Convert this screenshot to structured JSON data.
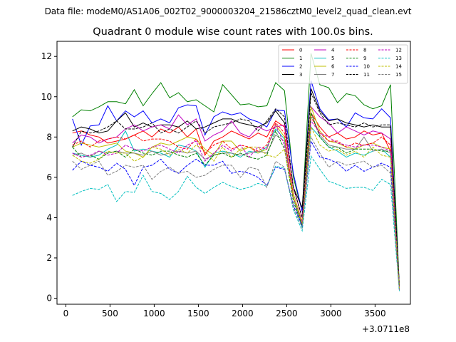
{
  "chart_data": {
    "type": "line",
    "suptitle": "Data file: modeM0/AS1A06_002T02_9000003204_21586cztM0_level2_quad_clean.evt",
    "title": "Quadrant 0 module wise count rates with 100.0s bins.",
    "xlabel": "",
    "ylabel": "",
    "x_offset_label": "+3.0711e8",
    "xlim": [
      -100,
      3900
    ],
    "ylim": [
      -0.3,
      12.75
    ],
    "xticks": [
      0,
      500,
      1000,
      1500,
      2000,
      2500,
      3000,
      3500
    ],
    "yticks": [
      0,
      2,
      4,
      6,
      8,
      10,
      12
    ],
    "grid": false,
    "legend_placement": "top-right",
    "x": [
      75,
      175,
      275,
      375,
      475,
      575,
      675,
      775,
      875,
      975,
      1075,
      1175,
      1275,
      1375,
      1475,
      1575,
      1675,
      1775,
      1875,
      1975,
      2075,
      2175,
      2275,
      2375,
      2475,
      2575,
      2675,
      2775,
      2875,
      2975,
      3075,
      3175,
      3275,
      3375,
      3475,
      3575,
      3675,
      3775
    ],
    "series": [
      {
        "name": "0",
        "color": "#ff0000",
        "dash": "solid",
        "values": [
          8.2,
          8.3,
          8.1,
          8.0,
          7.7,
          7.8,
          7.9,
          8.1,
          8.3,
          8.0,
          8.4,
          8.2,
          8.5,
          8.0,
          8.4,
          7.1,
          7.8,
          8.0,
          8.3,
          8.1,
          7.9,
          8.2,
          8.0,
          8.8,
          8.5,
          5.5,
          4.0,
          9.2,
          8.5,
          8.0,
          8.2,
          7.9,
          8.0,
          8.3,
          8.1,
          8.2,
          7.3,
          0.5
        ]
      },
      {
        "name": "1",
        "color": "#008000",
        "dash": "solid",
        "values": [
          9.0,
          9.35,
          9.3,
          9.5,
          9.75,
          9.75,
          9.65,
          10.35,
          9.55,
          10.15,
          10.7,
          9.95,
          10.2,
          9.75,
          9.85,
          9.55,
          9.25,
          10.6,
          10.1,
          9.6,
          9.65,
          9.5,
          9.55,
          10.7,
          10.3,
          6.0,
          4.3,
          12.15,
          10.6,
          10.45,
          9.7,
          10.15,
          10.05,
          9.6,
          9.4,
          9.55,
          10.6,
          0.6
        ]
      },
      {
        "name": "2",
        "color": "#0000ff",
        "dash": "solid",
        "values": [
          8.9,
          7.6,
          8.55,
          8.6,
          9.55,
          8.8,
          9.3,
          9.0,
          9.3,
          8.7,
          8.9,
          8.7,
          9.45,
          9.6,
          9.55,
          8.1,
          9.0,
          9.25,
          9.1,
          9.2,
          8.9,
          8.75,
          8.5,
          9.35,
          9.3,
          6.2,
          4.3,
          10.8,
          9.4,
          8.85,
          8.9,
          8.5,
          9.2,
          8.95,
          8.9,
          9.4,
          8.95,
          0.5
        ]
      },
      {
        "name": "3",
        "color": "#000000",
        "dash": "solid",
        "values": [
          8.3,
          8.5,
          8.4,
          8.2,
          8.3,
          8.8,
          9.2,
          8.5,
          8.7,
          8.5,
          8.6,
          8.6,
          8.5,
          8.8,
          8.4,
          8.5,
          8.7,
          8.9,
          8.9,
          8.7,
          8.6,
          8.5,
          8.7,
          9.3,
          8.7,
          5.5,
          4.5,
          10.4,
          9.3,
          8.8,
          8.9,
          8.7,
          8.6,
          8.5,
          8.6,
          8.5,
          8.5,
          0.6
        ]
      },
      {
        "name": "4",
        "color": "#bf00bf",
        "dash": "solid",
        "values": [
          7.7,
          8.1,
          8.0,
          7.7,
          7.9,
          8.0,
          8.4,
          8.6,
          8.3,
          8.5,
          8.6,
          8.4,
          9.1,
          8.6,
          8.9,
          7.8,
          8.1,
          8.3,
          8.8,
          8.2,
          8.0,
          8.5,
          8.3,
          8.5,
          8.6,
          5.5,
          4.0,
          9.5,
          9.0,
          8.7,
          8.2,
          8.5,
          8.3,
          8.1,
          8.3,
          8.2,
          7.9,
          0.5
        ]
      },
      {
        "name": "5",
        "color": "#00bfbf",
        "dash": "solid",
        "values": [
          7.2,
          7.1,
          7.0,
          7.1,
          7.4,
          7.6,
          8.3,
          7.3,
          7.4,
          7.3,
          7.2,
          7.0,
          7.6,
          7.5,
          7.3,
          6.5,
          7.2,
          7.3,
          7.2,
          7.0,
          7.3,
          7.2,
          7.5,
          8.4,
          7.9,
          5.0,
          3.5,
          8.5,
          8.0,
          7.5,
          7.3,
          7.0,
          7.2,
          7.1,
          7.3,
          7.4,
          7.0,
          0.4
        ]
      },
      {
        "name": "6",
        "color": "#bfbf00",
        "dash": "solid",
        "values": [
          7.5,
          7.7,
          7.6,
          7.5,
          7.6,
          7.7,
          7.3,
          7.2,
          7.0,
          7.5,
          7.7,
          7.6,
          7.8,
          8.0,
          7.9,
          7.4,
          7.1,
          7.8,
          7.8,
          7.3,
          7.5,
          7.2,
          7.4,
          8.6,
          8.0,
          5.2,
          3.8,
          9.5,
          8.3,
          7.8,
          7.7,
          7.5,
          7.4,
          7.6,
          7.7,
          7.5,
          7.4,
          0.5
        ]
      },
      {
        "name": "7",
        "color": "#808080",
        "dash": "solid",
        "values": [
          7.1,
          7.2,
          7.0,
          7.3,
          7.2,
          7.3,
          7.2,
          7.2,
          7.1,
          7.3,
          7.1,
          7.2,
          7.3,
          7.2,
          7.3,
          6.9,
          7.1,
          7.2,
          7.2,
          7.1,
          7.2,
          7.3,
          7.2,
          8.1,
          7.8,
          5.0,
          3.7,
          9.2,
          8.1,
          7.6,
          7.5,
          7.4,
          7.4,
          8.0,
          7.3,
          7.4,
          7.2,
          0.4
        ]
      },
      {
        "name": "8",
        "color": "#ff0000",
        "dash": "dashed",
        "values": [
          7.6,
          7.8,
          7.5,
          7.8,
          7.9,
          8.0,
          7.9,
          8.1,
          7.8,
          7.9,
          7.9,
          7.8,
          7.5,
          7.4,
          7.9,
          7.2,
          7.6,
          7.8,
          7.4,
          7.6,
          7.5,
          7.3,
          7.6,
          8.7,
          8.2,
          5.0,
          3.7,
          9.0,
          8.2,
          7.8,
          7.8,
          7.5,
          7.7,
          7.6,
          7.7,
          8.0,
          7.6,
          0.5
        ]
      },
      {
        "name": "9",
        "color": "#008000",
        "dash": "dashed",
        "values": [
          7.5,
          7.0,
          7.1,
          6.9,
          7.2,
          7.3,
          7.0,
          7.4,
          7.2,
          7.1,
          7.3,
          7.3,
          7.1,
          7.0,
          7.2,
          6.6,
          7.1,
          7.2,
          7.0,
          7.2,
          7.0,
          6.9,
          7.1,
          8.3,
          7.4,
          4.8,
          3.6,
          9.2,
          8.0,
          7.5,
          7.5,
          7.2,
          7.4,
          7.4,
          7.4,
          7.3,
          7.3,
          0.5
        ]
      },
      {
        "name": "10",
        "color": "#0000ff",
        "dash": "dashed",
        "values": [
          6.35,
          6.8,
          6.6,
          6.5,
          6.3,
          6.7,
          6.4,
          5.6,
          6.5,
          6.6,
          6.9,
          6.4,
          6.2,
          6.6,
          6.9,
          6.6,
          6.6,
          6.8,
          6.2,
          6.3,
          6.2,
          6.0,
          5.6,
          6.5,
          6.4,
          4.6,
          3.6,
          7.8,
          7.0,
          6.9,
          6.7,
          6.3,
          6.6,
          6.3,
          6.5,
          6.7,
          6.5,
          0.4
        ]
      },
      {
        "name": "11",
        "color": "#000000",
        "dash": "dashed",
        "values": [
          7.5,
          8.3,
          8.2,
          8.3,
          8.5,
          8.8,
          8.4,
          8.4,
          8.5,
          8.7,
          8.2,
          8.4,
          8.2,
          8.5,
          8.8,
          8.2,
          8.5,
          8.6,
          8.7,
          8.9,
          8.8,
          8.3,
          8.8,
          9.4,
          9.0,
          5.5,
          4.0,
          10.2,
          9.2,
          8.6,
          8.7,
          8.6,
          8.5,
          8.7,
          8.5,
          8.6,
          8.6,
          0.6
        ]
      },
      {
        "name": "12",
        "color": "#bf00bf",
        "dash": "dashed",
        "values": [
          7.2,
          7.0,
          7.1,
          7.3,
          7.1,
          7.2,
          7.6,
          7.4,
          7.3,
          7.5,
          7.6,
          7.4,
          7.2,
          7.6,
          7.8,
          6.8,
          7.2,
          7.6,
          7.3,
          7.6,
          7.0,
          7.5,
          7.4,
          8.6,
          7.6,
          5.0,
          3.8,
          8.8,
          8.2,
          8.0,
          7.7,
          7.6,
          7.5,
          7.6,
          7.6,
          7.5,
          7.3,
          0.5
        ]
      },
      {
        "name": "13",
        "color": "#00bfbf",
        "dash": "dashed",
        "values": [
          5.1,
          5.3,
          5.45,
          5.4,
          5.65,
          4.8,
          5.3,
          5.25,
          6.1,
          5.3,
          5.2,
          4.9,
          5.3,
          6.05,
          5.5,
          5.2,
          5.5,
          5.75,
          5.55,
          5.4,
          5.5,
          5.7,
          5.55,
          6.55,
          6.45,
          4.4,
          3.35,
          7.05,
          6.4,
          5.8,
          5.65,
          5.45,
          5.5,
          5.5,
          5.35,
          5.9,
          5.65,
          0.35
        ]
      },
      {
        "name": "14",
        "color": "#bfbf00",
        "dash": "dashed",
        "values": [
          7.1,
          6.8,
          6.7,
          6.9,
          7.3,
          7.2,
          7.2,
          6.8,
          7.0,
          7.5,
          7.4,
          7.1,
          7.4,
          7.2,
          7.6,
          7.3,
          6.8,
          7.5,
          7.0,
          7.4,
          7.5,
          7.5,
          7.1,
          7.0,
          7.4,
          5.0,
          3.7,
          8.5,
          7.6,
          7.3,
          7.4,
          7.1,
          7.3,
          7.0,
          7.5,
          7.1,
          7.0,
          0.5
        ]
      },
      {
        "name": "15",
        "color": "#808080",
        "dash": "dashed",
        "values": [
          6.8,
          6.4,
          6.6,
          6.8,
          6.1,
          6.3,
          6.6,
          6.5,
          6.6,
          5.9,
          6.3,
          6.5,
          6.2,
          6.3,
          6.0,
          6.1,
          6.4,
          6.6,
          6.6,
          6.0,
          6.5,
          6.4,
          5.5,
          6.8,
          6.5,
          4.5,
          3.5,
          8.0,
          7.2,
          6.5,
          6.8,
          6.6,
          6.7,
          6.8,
          6.5,
          6.6,
          6.2,
          0.4
        ]
      }
    ]
  }
}
